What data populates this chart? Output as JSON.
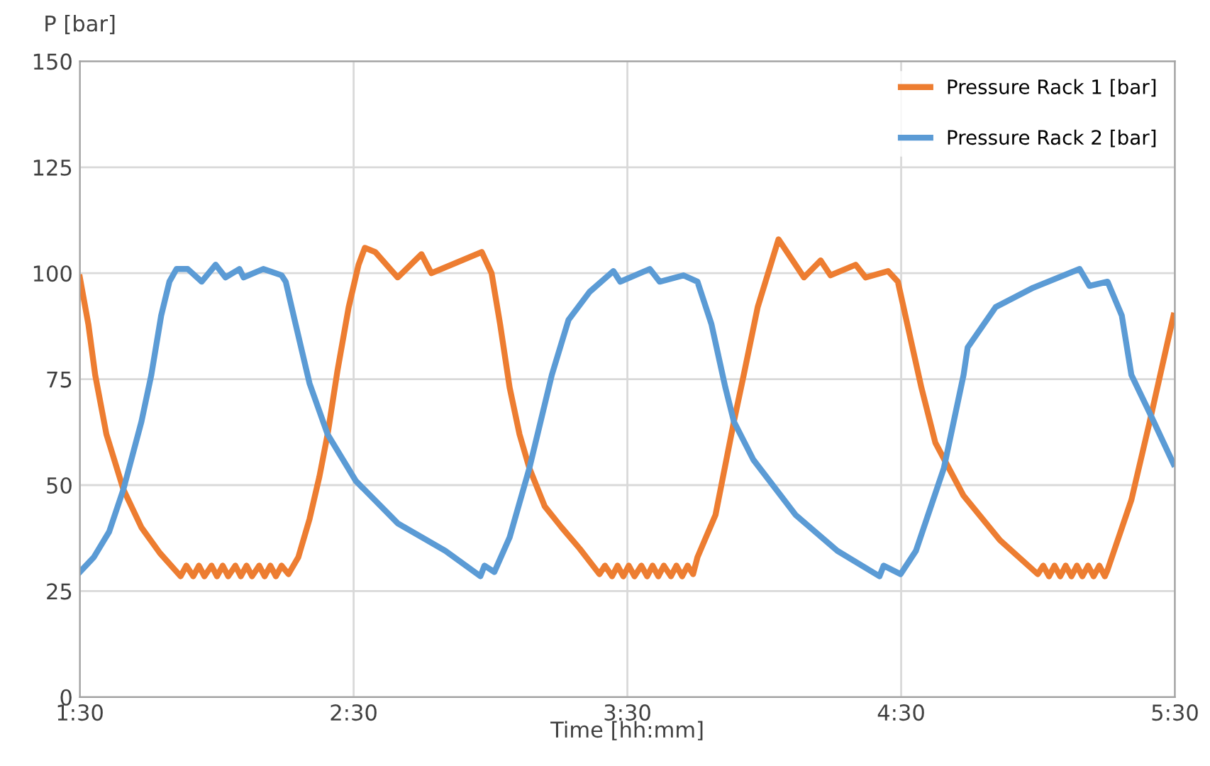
{
  "chart_data": {
    "type": "line",
    "xlabel": "Time [hh:mm]",
    "ylabel": "P [bar]",
    "xlim": [
      1.5,
      5.5
    ],
    "xticks": [
      {
        "value": 1.5,
        "label": "1:30"
      },
      {
        "value": 2.5,
        "label": "2:30"
      },
      {
        "value": 3.5,
        "label": "3:30"
      },
      {
        "value": 4.5,
        "label": "4:30"
      },
      {
        "value": 5.5,
        "label": "5:30"
      }
    ],
    "ylim": [
      0,
      150
    ],
    "yticks": [
      0,
      25,
      50,
      75,
      100,
      125,
      150
    ],
    "grid": true,
    "legend": "top right",
    "marker": "none",
    "line_style": "solid",
    "series": [
      {
        "name": "Pressure Rack 1 [bar]",
        "color": "#ed7d31",
        "x": [
          1.5,
          1.531,
          1.556,
          1.597,
          1.659,
          1.725,
          1.792,
          1.868,
          1.889,
          1.914,
          1.935,
          1.955,
          1.981,
          2.001,
          2.022,
          2.042,
          2.068,
          2.088,
          2.109,
          2.129,
          2.155,
          2.175,
          2.196,
          2.216,
          2.237,
          2.262,
          2.298,
          2.339,
          2.375,
          2.405,
          2.441,
          2.482,
          2.518,
          2.541,
          2.579,
          2.661,
          2.748,
          2.784,
          2.968,
          3.004,
          3.035,
          3.07,
          3.106,
          3.142,
          3.198,
          3.26,
          3.326,
          3.398,
          3.418,
          3.444,
          3.464,
          3.485,
          3.505,
          3.526,
          3.551,
          3.572,
          3.592,
          3.613,
          3.633,
          3.659,
          3.679,
          3.7,
          3.72,
          3.74,
          3.756,
          3.822,
          3.889,
          3.925,
          3.976,
          4.052,
          4.145,
          4.206,
          4.242,
          4.334,
          4.37,
          4.452,
          4.488,
          4.574,
          4.625,
          4.728,
          4.861,
          4.999,
          5.019,
          5.04,
          5.06,
          5.081,
          5.101,
          5.122,
          5.142,
          5.162,
          5.183,
          5.203,
          5.224,
          5.244,
          5.254,
          5.341,
          5.408,
          5.495
        ],
        "values": [
          99,
          88,
          76,
          62,
          49,
          40,
          34,
          28.5,
          31,
          28.5,
          31,
          28.5,
          31,
          28.5,
          31,
          28.5,
          31,
          28.5,
          31,
          28.5,
          31,
          28.5,
          31,
          28.5,
          31,
          29,
          33,
          42,
          52,
          62,
          77,
          92,
          102,
          106,
          105,
          99,
          104.5,
          100,
          105,
          100,
          88,
          73,
          62,
          54,
          45,
          40,
          35,
          29,
          31,
          28.5,
          31,
          28.5,
          31,
          28.5,
          31,
          28.5,
          31,
          28.5,
          31,
          28.5,
          31,
          28.5,
          31,
          29,
          33,
          43,
          65,
          76,
          92,
          108,
          99,
          103,
          99.5,
          102,
          99,
          100.5,
          98,
          73,
          60,
          47.5,
          37,
          29,
          31,
          28.5,
          31,
          28.5,
          31,
          28.5,
          31,
          28.5,
          31,
          28.5,
          31,
          28.5,
          30,
          46.5,
          65,
          90
        ]
      },
      {
        "name": "Pressure Rack 2 [bar]",
        "color": "#5b9bd5",
        "x": [
          1.5,
          1.551,
          1.607,
          1.659,
          1.725,
          1.761,
          1.797,
          1.827,
          1.853,
          1.894,
          1.945,
          1.996,
          2.032,
          2.083,
          2.098,
          2.17,
          2.237,
          2.252,
          2.288,
          2.339,
          2.405,
          2.508,
          2.661,
          2.835,
          2.963,
          2.978,
          3.014,
          3.07,
          3.142,
          3.224,
          3.285,
          3.362,
          3.449,
          3.474,
          3.582,
          3.618,
          3.705,
          3.756,
          3.807,
          3.858,
          3.889,
          3.96,
          4.114,
          4.267,
          4.421,
          4.436,
          4.498,
          4.554,
          4.656,
          4.728,
          4.743,
          4.845,
          4.983,
          5.152,
          5.188,
          5.254,
          5.306,
          5.341,
          5.408,
          5.495
        ],
        "values": [
          29.5,
          33,
          39,
          49,
          65,
          76,
          90,
          98,
          101,
          101,
          98,
          102,
          99,
          101,
          99,
          101,
          99.5,
          98,
          88,
          74,
          62,
          51,
          41,
          34.5,
          28.5,
          31,
          29.5,
          37.7,
          54,
          76,
          89,
          95.6,
          100.5,
          98,
          101,
          98,
          99.5,
          98,
          88,
          73,
          65,
          56,
          43,
          34.5,
          28.5,
          31,
          29,
          34.5,
          54,
          76,
          82.5,
          92,
          96.6,
          101,
          97,
          98,
          90,
          76,
          67,
          55
        ]
      }
    ]
  }
}
